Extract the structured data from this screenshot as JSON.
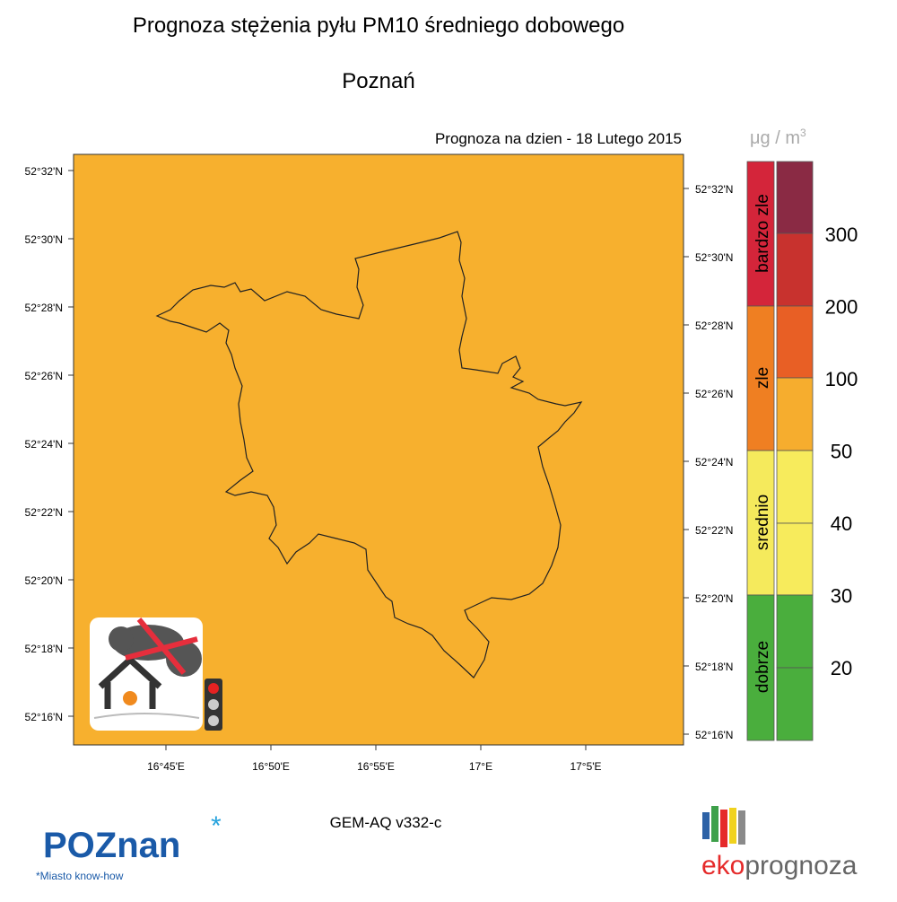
{
  "header": {
    "title": "Prognoza stężenia pyłu PM10 średniego dobowego",
    "city": "Poznań",
    "forecast_date": "Prognoza na dzien -  18 Lutego 2015"
  },
  "map": {
    "lat_labels_left": [
      "52°32'N",
      "52°30'N",
      "52°28'N",
      "52°26'N",
      "52°24'N",
      "52°22'N",
      "52°20'N",
      "52°18'N",
      "52°16'N"
    ],
    "lat_labels_right": [
      "52°32'N",
      "52°30'N",
      "52°28'N",
      "52°26'N",
      "52°24'N",
      "52°22'N",
      "52°20'N",
      "52°18'N",
      "52°16'N"
    ],
    "lon_labels": [
      "16°45'E",
      "16°50'E",
      "16°55'E",
      "17°E",
      "17°5'E"
    ]
  },
  "legend": {
    "unit": {
      "base": "μg / m",
      "exponent": "3"
    },
    "classes": [
      "bardzo zle",
      "zle",
      "srednio",
      "dobrze"
    ],
    "thresholds": [
      300,
      200,
      100,
      50,
      40,
      30,
      20
    ]
  },
  "footer": {
    "model": "GEM-AQ v332-c",
    "logo_left": "POZnan",
    "logo_left_tagline": "*Miasto know-how",
    "logo_right_prefix": "eko",
    "logo_right_suffix": "prognoza"
  }
}
